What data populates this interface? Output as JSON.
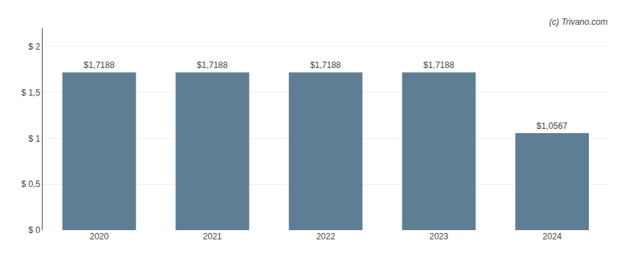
{
  "chart_data": {
    "type": "bar",
    "categories": [
      "2020",
      "2021",
      "2022",
      "2023",
      "2024"
    ],
    "values": [
      1.7188,
      1.7188,
      1.7188,
      1.7188,
      1.0567
    ],
    "value_labels": [
      "$1,7188",
      "$1,7188",
      "$1,7188",
      "$1,7188",
      "$1,0567"
    ],
    "data_labels": true,
    "color": "#5e7f93",
    "ylim": [
      0,
      2.2
    ],
    "yticks": [
      {
        "value": 0,
        "label": "$ 0"
      },
      {
        "value": 0.5,
        "label": "$ 0,5"
      },
      {
        "value": 1.0,
        "label": "$ 1"
      },
      {
        "value": 1.5,
        "label": "$ 1,5"
      },
      {
        "value": 2.0,
        "label": "$ 2"
      }
    ],
    "grid": true,
    "annotations": [
      "(c) Trivano.com"
    ]
  }
}
